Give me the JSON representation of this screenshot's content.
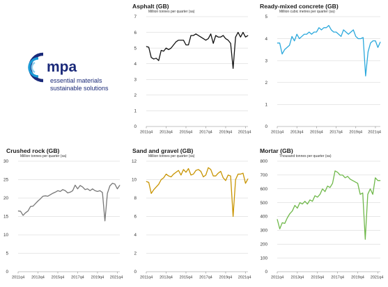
{
  "logo": {
    "name": "mpa",
    "tagline_1": "essential materials",
    "tagline_2": "sustainable solutions",
    "colors": {
      "navy": "#1b2a7a",
      "teal": "#1a9ad6"
    }
  },
  "chart_data": [
    {
      "id": "asphalt",
      "type": "line",
      "title": "Asphalt (GB)",
      "ylabel": "Million tonnes per quarter (sa)",
      "ylim": [
        0,
        7
      ],
      "yticks": [
        0,
        1,
        2,
        3,
        4,
        5,
        6,
        7
      ],
      "xticks": [
        "2011q4",
        "2013q4",
        "2015q4",
        "2017q4",
        "2019q4",
        "2021q4"
      ],
      "start": "2011q4",
      "color": "#111111",
      "values": [
        5.1,
        5.05,
        4.4,
        4.3,
        4.35,
        4.2,
        4.85,
        4.8,
        5.0,
        4.9,
        5.0,
        5.2,
        5.4,
        5.5,
        5.5,
        5.5,
        5.2,
        5.2,
        5.8,
        5.8,
        5.9,
        5.8,
        5.7,
        5.6,
        5.5,
        5.6,
        5.9,
        5.3,
        5.8,
        5.7,
        5.7,
        5.8,
        5.6,
        5.5,
        5.3,
        3.7,
        5.7,
        6.0,
        5.7,
        6.0,
        5.7,
        5.8
      ]
    },
    {
      "id": "ready-mixed-concrete",
      "type": "line",
      "title": "Ready-mixed concrete (GB)",
      "ylabel": "Million cubic metres per quarter (sa)",
      "ylim": [
        0,
        5
      ],
      "yticks": [
        0,
        1,
        2,
        3,
        4,
        5
      ],
      "xticks": [
        "2011q4",
        "2013q4",
        "2015q4",
        "2017q4",
        "2019q4",
        "2021q4"
      ],
      "start": "2011q4",
      "color": "#2aa8dc",
      "values": [
        3.8,
        3.8,
        3.3,
        3.5,
        3.6,
        3.7,
        4.1,
        3.9,
        4.2,
        4.0,
        4.1,
        4.2,
        4.2,
        4.3,
        4.2,
        4.3,
        4.3,
        4.5,
        4.4,
        4.5,
        4.5,
        4.6,
        4.4,
        4.3,
        4.3,
        4.2,
        4.1,
        4.4,
        4.3,
        4.2,
        4.3,
        4.4,
        4.1,
        4.0,
        4.0,
        4.05,
        2.3,
        3.4,
        3.8,
        3.9,
        3.9,
        3.6,
        3.85
      ]
    },
    {
      "id": "crushed-rock",
      "type": "line",
      "title": "Crushed rock (GB)",
      "ylabel": "Million tonnes per quarter (sa)",
      "ylim": [
        0,
        30
      ],
      "yticks": [
        0,
        5,
        10,
        15,
        20,
        25,
        30
      ],
      "xticks": [
        "2011q4",
        "2013q4",
        "2015q4",
        "2017q4",
        "2019q4",
        "2021q4"
      ],
      "start": "2011q4",
      "color": "#777777",
      "values": [
        16.5,
        16.4,
        15.3,
        16.0,
        16.5,
        17.7,
        17.8,
        18.5,
        19.2,
        19.8,
        20.5,
        20.6,
        20.5,
        20.9,
        21.3,
        21.6,
        22.0,
        21.8,
        22.3,
        22.0,
        21.4,
        21.6,
        22.0,
        23.5,
        22.5,
        23.4,
        23.0,
        22.3,
        22.5,
        22.0,
        22.5,
        22.0,
        21.8,
        22.0,
        21.5,
        13.8,
        21.3,
        23.3,
        24.0,
        23.8,
        22.5,
        23.5
      ]
    },
    {
      "id": "sand-and-gravel",
      "type": "line",
      "title": "Sand and gravel (GB)",
      "ylabel": "Million tonnes per quarter (sa)",
      "ylim": [
        0,
        12
      ],
      "yticks": [
        0,
        2,
        4,
        6,
        8,
        10,
        12
      ],
      "xticks": [
        "2011q4",
        "2013q4",
        "2015q4",
        "2017q4",
        "2019q4",
        "2021q4"
      ],
      "start": "2011q4",
      "color": "#c89400",
      "values": [
        9.8,
        9.7,
        8.5,
        8.9,
        9.2,
        9.5,
        10.0,
        10.2,
        10.6,
        10.4,
        10.3,
        10.6,
        10.8,
        11.0,
        10.5,
        11.1,
        10.8,
        11.2,
        10.5,
        10.6,
        11.0,
        11.1,
        10.9,
        10.3,
        10.5,
        11.3,
        11.1,
        10.4,
        10.4,
        10.7,
        10.9,
        10.2,
        9.9,
        10.5,
        10.4,
        6.0,
        10.0,
        10.6,
        10.6,
        10.7,
        9.6,
        10.1
      ]
    },
    {
      "id": "mortar",
      "type": "line",
      "title": "Mortar (GB)",
      "ylabel": "Thousand tonnes per quarter (sa)",
      "ylim": [
        0,
        800
      ],
      "yticks": [
        0,
        100,
        200,
        300,
        400,
        500,
        600,
        700,
        800
      ],
      "xticks": [
        "2011q4",
        "2013q4",
        "2015q4",
        "2017q4",
        "2019q4",
        "2021q4"
      ],
      "start": "2011q4",
      "color": "#6fb84a",
      "values": [
        380,
        310,
        355,
        350,
        390,
        420,
        440,
        480,
        460,
        500,
        490,
        510,
        490,
        520,
        510,
        550,
        540,
        560,
        600,
        580,
        620,
        610,
        640,
        730,
        720,
        700,
        700,
        680,
        690,
        670,
        660,
        650,
        640,
        560,
        570,
        235,
        560,
        600,
        560,
        680,
        660,
        660
      ]
    }
  ]
}
